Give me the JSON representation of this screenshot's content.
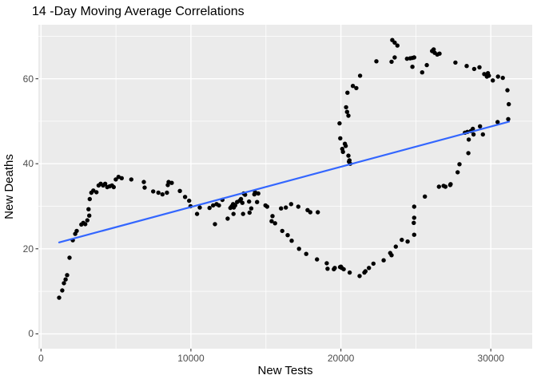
{
  "chart_data": {
    "type": "scatter",
    "title": "14 -Day Moving Average Correlations",
    "xlabel": "New Tests",
    "ylabel": "New Deaths",
    "xlim": [
      -176,
      32760
    ],
    "ylim": [
      -3.5,
      72.7
    ],
    "grid": true,
    "legend": false,
    "panel_bg": "#EBEBEB",
    "grid_color": "#FFFFFF",
    "point_color": "#000000",
    "trend_color": "#3366FF",
    "tick_label_color": "#4D4D4D",
    "x_ticks": [
      {
        "value": 0,
        "label": "0"
      },
      {
        "value": 10000,
        "label": "10000"
      },
      {
        "value": 20000,
        "label": "20000"
      },
      {
        "value": 30000,
        "label": "30000"
      }
    ],
    "x_minor": [
      5000,
      15000,
      25000
    ],
    "y_ticks": [
      {
        "value": 0,
        "label": "0"
      },
      {
        "value": 20,
        "label": "20"
      },
      {
        "value": 40,
        "label": "40"
      },
      {
        "value": 60,
        "label": "60"
      }
    ],
    "y_minor": [
      10,
      30,
      50,
      70
    ],
    "trend_line": {
      "method": "linear",
      "x1": 1210,
      "y1": 21.5,
      "x2": 31215,
      "y2": 49.9
    },
    "points": [
      [
        1210,
        8.5
      ],
      [
        1420,
        10.2
      ],
      [
        1530,
        11.9
      ],
      [
        1640,
        12.8
      ],
      [
        1740,
        13.8
      ],
      [
        1900,
        17.9
      ],
      [
        2120,
        22.0
      ],
      [
        2280,
        23.5
      ],
      [
        2380,
        24.2
      ],
      [
        2690,
        25.7
      ],
      [
        2820,
        26.1
      ],
      [
        2950,
        25.8
      ],
      [
        3090,
        26.7
      ],
      [
        3170,
        29.3
      ],
      [
        3220,
        27.8
      ],
      [
        3250,
        31.7
      ],
      [
        3360,
        33.2
      ],
      [
        3490,
        33.7
      ],
      [
        3700,
        33.3
      ],
      [
        3840,
        34.9
      ],
      [
        3980,
        35.3
      ],
      [
        4140,
        34.9
      ],
      [
        4280,
        35.3
      ],
      [
        4420,
        34.5
      ],
      [
        4580,
        34.7
      ],
      [
        4730,
        34.9
      ],
      [
        4850,
        34.5
      ],
      [
        4990,
        36.3
      ],
      [
        5170,
        36.9
      ],
      [
        5380,
        36.6
      ],
      [
        6020,
        36.3
      ],
      [
        6860,
        35.7
      ],
      [
        6910,
        34.4
      ],
      [
        7480,
        33.5
      ],
      [
        7830,
        33.2
      ],
      [
        8100,
        32.8
      ],
      [
        8400,
        33.2
      ],
      [
        8460,
        35.0
      ],
      [
        8510,
        35.7
      ],
      [
        8720,
        35.5
      ],
      [
        9260,
        33.6
      ],
      [
        9610,
        32.2
      ],
      [
        9880,
        31.3
      ],
      [
        9970,
        30.0
      ],
      [
        10410,
        28.2
      ],
      [
        10590,
        29.7
      ],
      [
        11240,
        29.6
      ],
      [
        11480,
        30.2
      ],
      [
        11600,
        25.8
      ],
      [
        11710,
        30.5
      ],
      [
        11870,
        30.2
      ],
      [
        12100,
        31.5
      ],
      [
        12450,
        27.1
      ],
      [
        12630,
        29.6
      ],
      [
        12720,
        30.0
      ],
      [
        12810,
        30.5
      ],
      [
        12840,
        28.2
      ],
      [
        12860,
        29.7
      ],
      [
        12950,
        30.2
      ],
      [
        13080,
        31.0
      ],
      [
        13250,
        31.3
      ],
      [
        13340,
        31.7
      ],
      [
        13430,
        30.8
      ],
      [
        13480,
        28.2
      ],
      [
        13520,
        33.0
      ],
      [
        13610,
        32.7
      ],
      [
        13880,
        31.1
      ],
      [
        13910,
        28.5
      ],
      [
        14020,
        29.5
      ],
      [
        14230,
        32.8
      ],
      [
        14280,
        33.3
      ],
      [
        14410,
        31.0
      ],
      [
        14490,
        33.0
      ],
      [
        14970,
        30.2
      ],
      [
        15080,
        29.9
      ],
      [
        15440,
        27.7
      ],
      [
        15380,
        26.5
      ],
      [
        15610,
        26.0
      ],
      [
        16010,
        29.5
      ],
      [
        16090,
        24.2
      ],
      [
        16330,
        29.7
      ],
      [
        16450,
        23.2
      ],
      [
        16680,
        30.5
      ],
      [
        16720,
        21.9
      ],
      [
        17160,
        29.9
      ],
      [
        17210,
        20.0
      ],
      [
        17690,
        18.8
      ],
      [
        17780,
        29.1
      ],
      [
        17960,
        28.6
      ],
      [
        18410,
        17.5
      ],
      [
        18460,
        28.6
      ],
      [
        19060,
        16.6
      ],
      [
        19110,
        15.3
      ],
      [
        19530,
        15.2
      ],
      [
        19590,
        15.5
      ],
      [
        19950,
        15.7
      ],
      [
        20000,
        15.8
      ],
      [
        20060,
        15.5
      ],
      [
        20190,
        15.2
      ],
      [
        20590,
        14.4
      ],
      [
        21250,
        13.6
      ],
      [
        21570,
        14.4
      ],
      [
        21640,
        14.7
      ],
      [
        21870,
        15.5
      ],
      [
        22170,
        16.5
      ],
      [
        22850,
        17.3
      ],
      [
        23290,
        19.0
      ],
      [
        23380,
        18.5
      ],
      [
        23660,
        20.5
      ],
      [
        24060,
        22.1
      ],
      [
        24450,
        21.7
      ],
      [
        24860,
        26.1
      ],
      [
        24890,
        23.3
      ],
      [
        24890,
        27.3
      ],
      [
        24890,
        29.9
      ],
      [
        25600,
        32.3
      ],
      [
        26540,
        34.6
      ],
      [
        26850,
        34.8
      ],
      [
        26970,
        34.6
      ],
      [
        27290,
        35.0
      ],
      [
        19910,
        49.5
      ],
      [
        19960,
        46.0
      ],
      [
        20090,
        43.5
      ],
      [
        20140,
        42.8
      ],
      [
        20270,
        44.7
      ],
      [
        20320,
        44.2
      ],
      [
        20350,
        53.3
      ],
      [
        20410,
        52.2
      ],
      [
        20440,
        56.7
      ],
      [
        20500,
        51.3
      ],
      [
        20500,
        41.9
      ],
      [
        20570,
        40.8
      ],
      [
        20620,
        40.0
      ],
      [
        20540,
        40.5
      ],
      [
        20800,
        58.3
      ],
      [
        21030,
        57.8
      ],
      [
        21280,
        60.7
      ],
      [
        22370,
        64.1
      ],
      [
        23380,
        64.0
      ],
      [
        23430,
        69.1
      ],
      [
        23590,
        68.5
      ],
      [
        23590,
        65.0
      ],
      [
        23770,
        67.8
      ],
      [
        24410,
        64.7
      ],
      [
        24620,
        64.8
      ],
      [
        24770,
        64.9
      ],
      [
        24770,
        62.8
      ],
      [
        24890,
        65.0
      ],
      [
        25420,
        61.5
      ],
      [
        25730,
        63.2
      ],
      [
        26080,
        66.5
      ],
      [
        26190,
        66.9
      ],
      [
        26260,
        66.1
      ],
      [
        26430,
        65.7
      ],
      [
        26580,
        65.9
      ],
      [
        27640,
        63.8
      ],
      [
        28390,
        63.0
      ],
      [
        28890,
        62.3
      ],
      [
        29240,
        62.7
      ],
      [
        29560,
        61.1
      ],
      [
        29740,
        60.5
      ],
      [
        29810,
        61.3
      ],
      [
        29870,
        60.7
      ],
      [
        30130,
        59.6
      ],
      [
        30480,
        60.5
      ],
      [
        30800,
        60.2
      ],
      [
        31110,
        57.3
      ],
      [
        31200,
        54.0
      ],
      [
        31160,
        50.5
      ],
      [
        30450,
        49.8
      ],
      [
        29280,
        48.8
      ],
      [
        28800,
        48.2
      ],
      [
        28440,
        47.5
      ],
      [
        28270,
        47.3
      ],
      [
        28850,
        46.9
      ],
      [
        29470,
        46.9
      ],
      [
        28670,
        47.7
      ],
      [
        28530,
        45.7
      ],
      [
        28500,
        42.5
      ],
      [
        27910,
        39.9
      ],
      [
        27790,
        38.0
      ],
      [
        27320,
        35.2
      ]
    ]
  }
}
